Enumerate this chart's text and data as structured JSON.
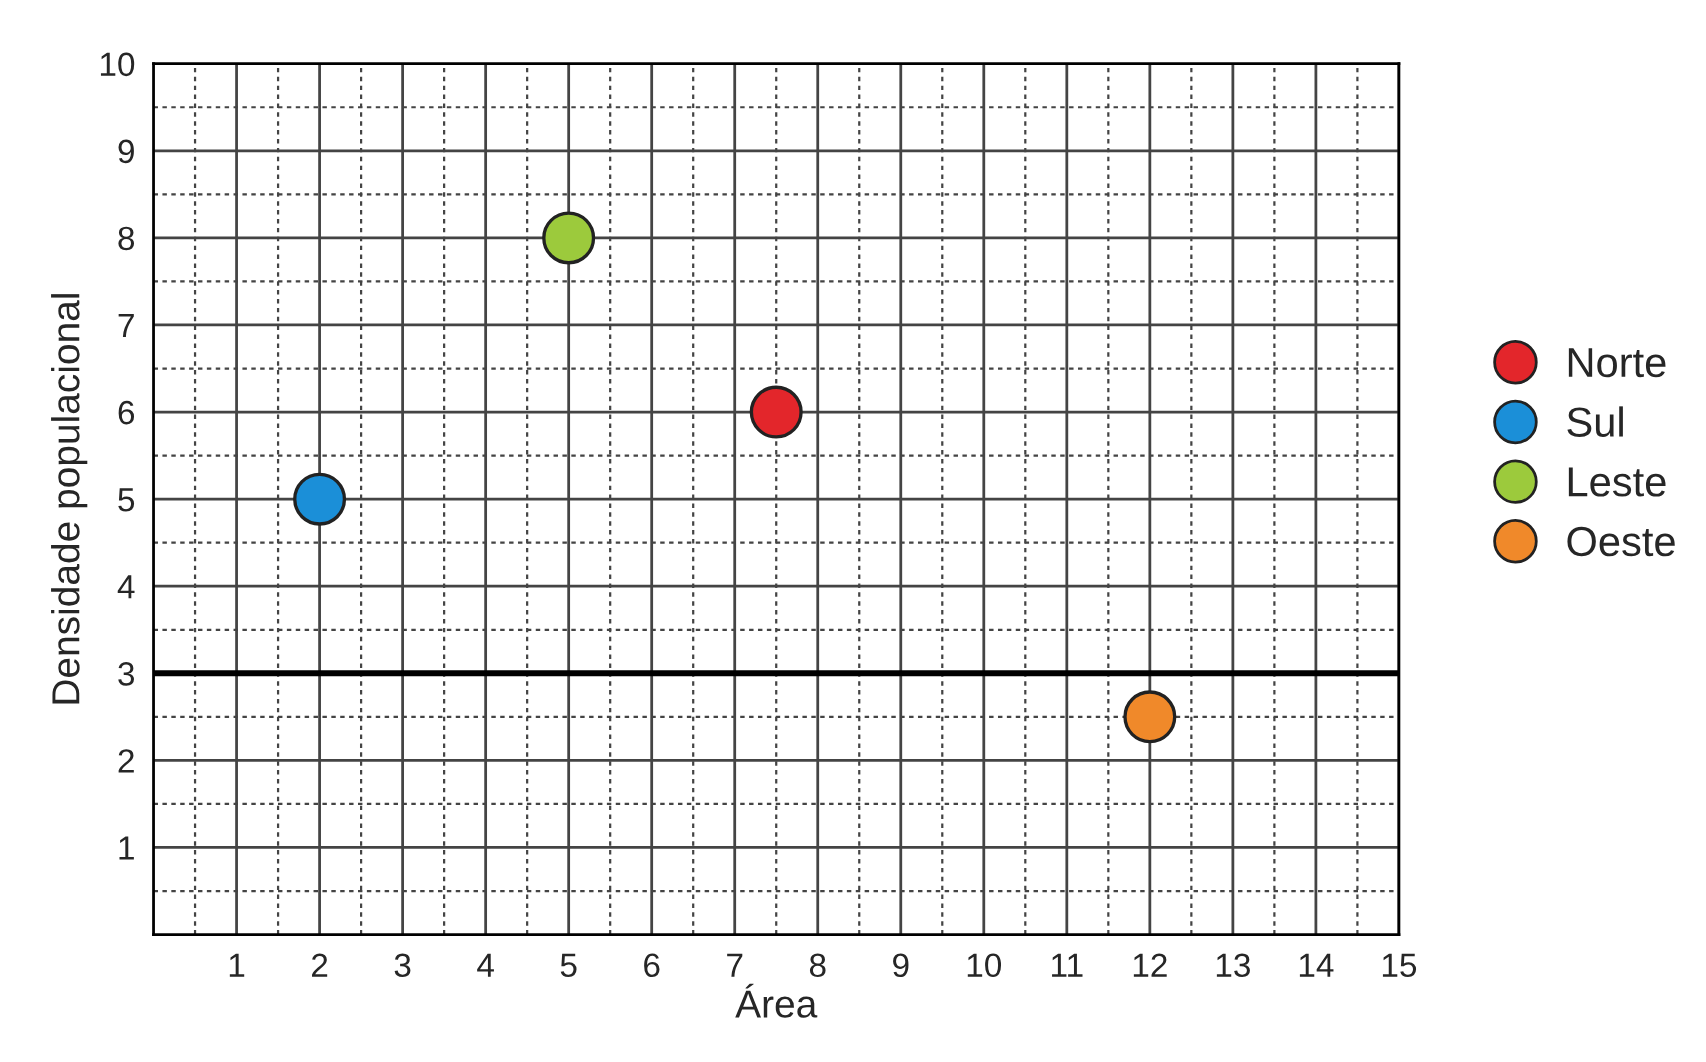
{
  "chart_data": {
    "type": "scatter",
    "xlabel": "Área",
    "ylabel": "Densidade populacional",
    "xlim": [
      0,
      15
    ],
    "ylim": [
      0,
      10
    ],
    "xticks": [
      {
        "value": 0.5,
        "label": null
      },
      1,
      {
        "value": 1.5,
        "label": null
      },
      2,
      {
        "value": 2.5,
        "label": null
      },
      3,
      {
        "value": 3.5,
        "label": null
      },
      4,
      {
        "value": 4.5,
        "label": null
      },
      5,
      {
        "value": 5.5,
        "label": null
      },
      6,
      {
        "value": 6.5,
        "label": null
      },
      7,
      {
        "value": 7.5,
        "label": null
      },
      8,
      {
        "value": 8.5,
        "label": null
      },
      9,
      {
        "value": 9.5,
        "label": null
      },
      10,
      {
        "value": 10.5,
        "label": null
      },
      11,
      {
        "value": 11.5,
        "label": null
      },
      12,
      {
        "value": 12.5,
        "label": null
      },
      13,
      {
        "value": 13.5,
        "label": null
      },
      14,
      {
        "value": 14.5,
        "label": null
      },
      15
    ],
    "yticks": [
      {
        "value": 0.5,
        "label": null
      },
      1,
      {
        "value": 1.5,
        "label": null
      },
      2,
      {
        "value": 2.5,
        "label": null
      },
      3,
      {
        "value": 3.5,
        "label": null
      },
      4,
      {
        "value": 4.5,
        "label": null
      },
      5,
      {
        "value": 5.5,
        "label": null
      },
      6,
      {
        "value": 6.5,
        "label": null
      },
      7,
      {
        "value": 7.5,
        "label": null
      },
      8,
      {
        "value": 8.5,
        "label": null
      },
      9,
      {
        "value": 9.5,
        "label": null
      },
      10
    ],
    "grid": true,
    "legend": "right",
    "marker": "circle",
    "ref_lines": [
      {
        "axis": "y",
        "value": 3,
        "color": "#000000"
      }
    ],
    "series": [
      {
        "name": "Norte",
        "color": "#e3262b",
        "x": [
          7.5
        ],
        "values": [
          6
        ]
      },
      {
        "name": "Sul",
        "color": "#1b8fd8",
        "x": [
          2
        ],
        "values": [
          5
        ]
      },
      {
        "name": "Leste",
        "color": "#9cca3c",
        "x": [
          5
        ],
        "values": [
          8
        ]
      },
      {
        "name": "Oeste",
        "color": "#f0892a",
        "x": [
          12
        ],
        "values": [
          2.5
        ]
      }
    ]
  }
}
